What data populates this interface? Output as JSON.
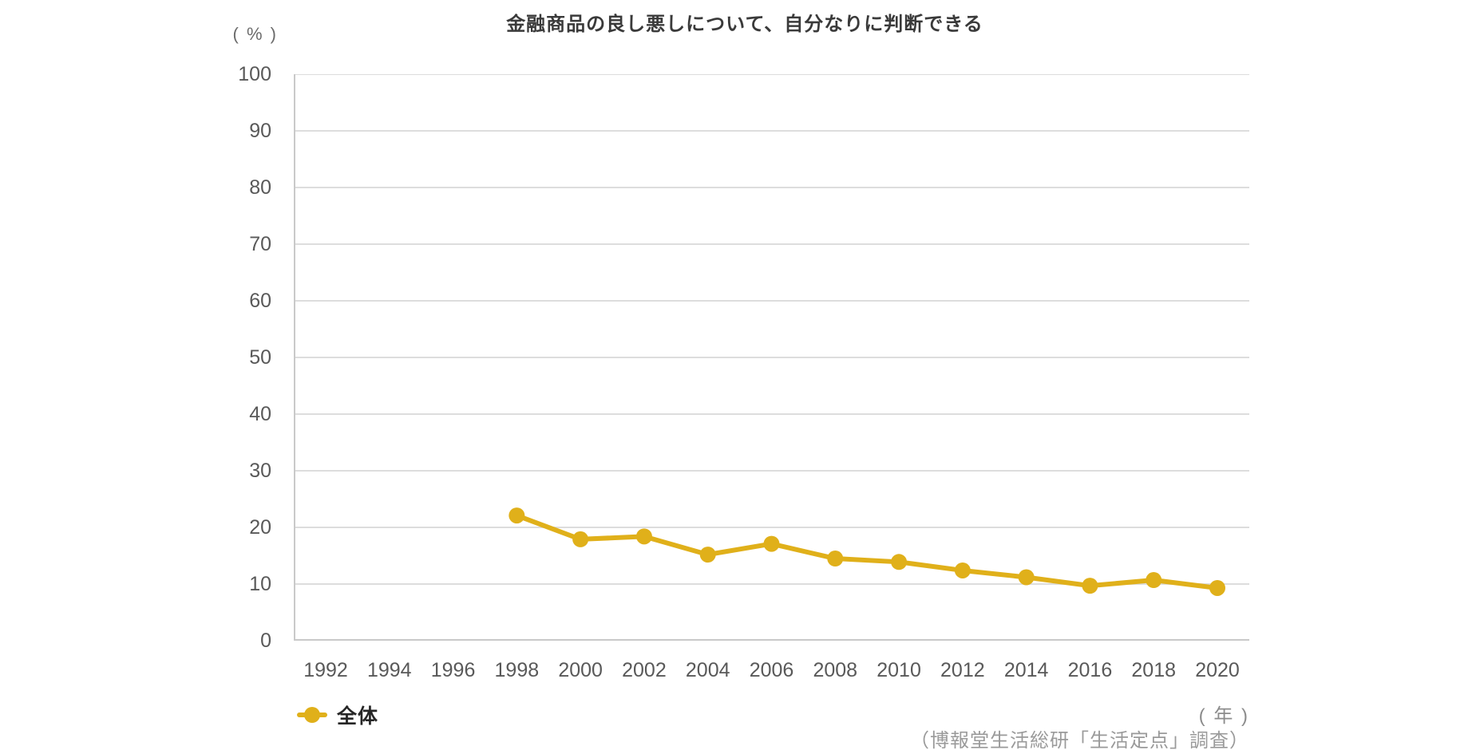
{
  "title": "金融商品の良し悪しについて、自分なりに判断できる",
  "y_unit_label": "( % )",
  "x_unit_label": "( 年 )",
  "source_credit": "（博報堂生活総研「生活定点」調査）",
  "legend": {
    "items": [
      {
        "label": "全体",
        "color": "#e0b01a"
      }
    ]
  },
  "colors": {
    "series_gold": "#e0b01a",
    "gridline": "#dddddd",
    "axis": "#c9c9c9",
    "tick_text": "#595959",
    "title_text": "#3a3a3a",
    "muted_text": "#9a9a9a",
    "background": "#ffffff"
  },
  "chart_data": {
    "type": "line",
    "title": "金融商品の良し悪しについて、自分なりに判断できる",
    "xlabel": "年",
    "ylabel": "%",
    "x": [
      1992,
      1994,
      1996,
      1998,
      2000,
      2002,
      2004,
      2006,
      2008,
      2010,
      2012,
      2014,
      2016,
      2018,
      2020
    ],
    "y_ticks": [
      0,
      10,
      20,
      30,
      40,
      50,
      60,
      70,
      80,
      90,
      100
    ],
    "ylim": [
      0,
      100
    ],
    "grid": "horizontal",
    "legend_position": "bottom-left",
    "series": [
      {
        "name": "全体",
        "color": "#e0b01a",
        "values": [
          null,
          null,
          null,
          22.1,
          17.9,
          18.4,
          15.2,
          17.1,
          14.5,
          13.9,
          12.4,
          11.2,
          9.7,
          10.7,
          9.3
        ]
      }
    ]
  }
}
